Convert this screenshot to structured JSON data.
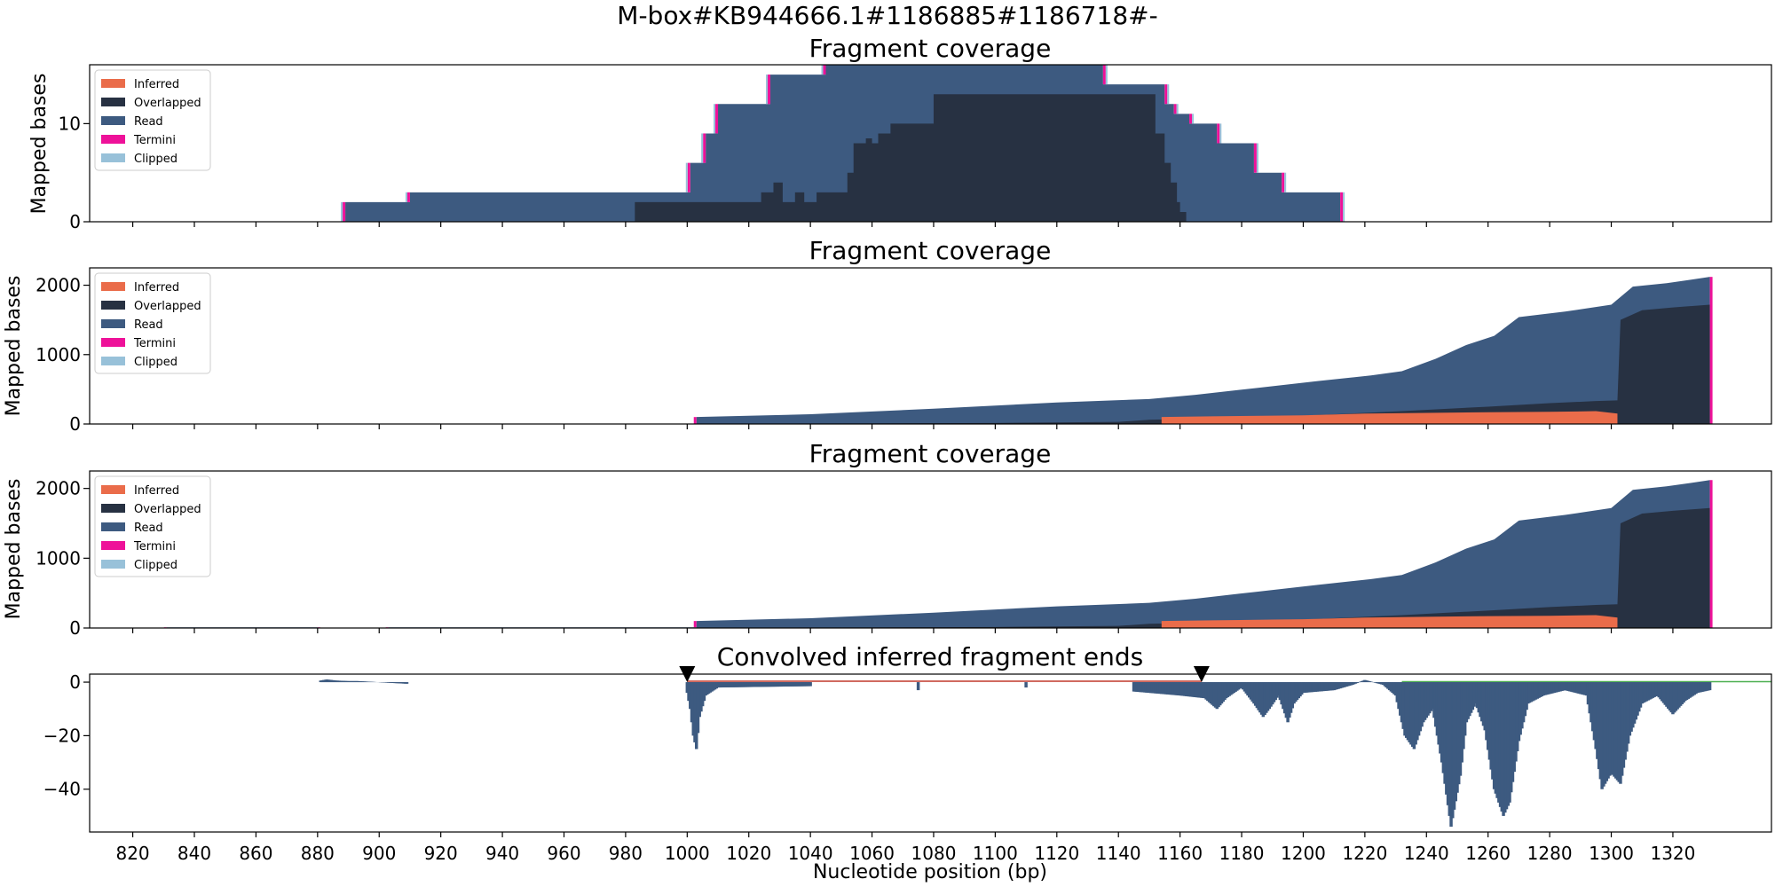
{
  "figure": {
    "suptitle": "M-box#KB944666.1#1186885#1186718#-"
  },
  "colors": {
    "inferred": "#EA6C4A",
    "overlapped": "#273142",
    "read": "#3D5A80",
    "termini": "#EE1199",
    "clipped": "#98C1D9",
    "convolved": "#3D5A80",
    "bracket": "#C0392B",
    "guide": "#4CAF50"
  },
  "chart_data": [
    {
      "type": "area",
      "title": "Fragment coverage",
      "ylabel": "Mapped bases",
      "xlim": [
        806,
        1352
      ],
      "ylim": [
        0,
        16
      ],
      "yticks": [
        0,
        10
      ],
      "legend": [
        "Inferred",
        "Overlapped",
        "Read",
        "Termini",
        "Clipped"
      ],
      "legend_position": "upper-left",
      "series": [
        {
          "name": "Read",
          "points": [
            [
              889,
              0
            ],
            [
              889,
              2
            ],
            [
              910,
              2
            ],
            [
              910,
              3
            ],
            [
              1001,
              3
            ],
            [
              1001,
              6
            ],
            [
              1006,
              6
            ],
            [
              1006,
              9
            ],
            [
              1010,
              9
            ],
            [
              1010,
              12
            ],
            [
              1027,
              12
            ],
            [
              1027,
              15
            ],
            [
              1045,
              15
            ],
            [
              1045,
              16
            ],
            [
              1055,
              16
            ],
            [
              1055,
              18
            ],
            [
              1120,
              18
            ],
            [
              1120,
              16
            ],
            [
              1135,
              16
            ],
            [
              1135,
              14
            ],
            [
              1155,
              14
            ],
            [
              1155,
              12
            ],
            [
              1158,
              12
            ],
            [
              1158,
              11
            ],
            [
              1163,
              11
            ],
            [
              1163,
              10
            ],
            [
              1172,
              10
            ],
            [
              1172,
              8
            ],
            [
              1184,
              8
            ],
            [
              1184,
              5
            ],
            [
              1193,
              5
            ],
            [
              1193,
              3
            ],
            [
              1212,
              3
            ],
            [
              1212,
              0
            ]
          ]
        },
        {
          "name": "Overlapped",
          "points": [
            [
              983,
              0
            ],
            [
              983,
              2
            ],
            [
              1024,
              2
            ],
            [
              1024,
              3
            ],
            [
              1028,
              3
            ],
            [
              1028,
              4
            ],
            [
              1031,
              4
            ],
            [
              1031,
              2
            ],
            [
              1035,
              2
            ],
            [
              1035,
              3
            ],
            [
              1038,
              3
            ],
            [
              1038,
              2
            ],
            [
              1042,
              2
            ],
            [
              1042,
              3
            ],
            [
              1052,
              3
            ],
            [
              1052,
              5
            ],
            [
              1054,
              5
            ],
            [
              1054,
              8
            ],
            [
              1058,
              8
            ],
            [
              1058,
              8.5
            ],
            [
              1060,
              8.5
            ],
            [
              1060,
              8
            ],
            [
              1062,
              8
            ],
            [
              1062,
              9
            ],
            [
              1066,
              9
            ],
            [
              1066,
              10
            ],
            [
              1080,
              10
            ],
            [
              1080,
              13
            ],
            [
              1152,
              13
            ],
            [
              1152,
              9
            ],
            [
              1155,
              9
            ],
            [
              1155,
              6
            ],
            [
              1157,
              6
            ],
            [
              1157,
              4
            ],
            [
              1159,
              4
            ],
            [
              1159,
              2
            ],
            [
              1160,
              2
            ],
            [
              1160,
              1
            ],
            [
              1162,
              1
            ],
            [
              1162,
              0
            ]
          ]
        }
      ]
    },
    {
      "type": "area",
      "title": "Fragment coverage",
      "ylabel": "Mapped bases",
      "xlim": [
        806,
        1352
      ],
      "ylim": [
        0,
        2250
      ],
      "yticks": [
        0,
        1000,
        2000
      ],
      "legend": [
        "Inferred",
        "Overlapped",
        "Read",
        "Termini",
        "Clipped"
      ],
      "legend_position": "upper-left",
      "series": [
        {
          "name": "Read",
          "points": [
            [
              1003,
              0
            ],
            [
              1003,
              100
            ],
            [
              1040,
              140
            ],
            [
              1080,
              220
            ],
            [
              1120,
              310
            ],
            [
              1150,
              360
            ],
            [
              1165,
              420
            ],
            [
              1185,
              520
            ],
            [
              1205,
              620
            ],
            [
              1222,
              700
            ],
            [
              1232,
              760
            ],
            [
              1243,
              940
            ],
            [
              1253,
              1140
            ],
            [
              1262,
              1270
            ],
            [
              1270,
              1540
            ],
            [
              1285,
              1620
            ],
            [
              1294,
              1680
            ],
            [
              1300,
              1720
            ],
            [
              1307,
              1980
            ],
            [
              1318,
              2030
            ],
            [
              1326,
              2080
            ],
            [
              1332,
              2120
            ],
            [
              1332,
              0
            ]
          ]
        },
        {
          "name": "Overlapped",
          "points": [
            [
              1003,
              0
            ],
            [
              1003,
              3
            ],
            [
              1060,
              8
            ],
            [
              1100,
              15
            ],
            [
              1140,
              30
            ],
            [
              1150,
              60
            ],
            [
              1170,
              80
            ],
            [
              1200,
              120
            ],
            [
              1230,
              180
            ],
            [
              1260,
              250
            ],
            [
              1280,
              300
            ],
            [
              1295,
              330
            ],
            [
              1302,
              340
            ],
            [
              1303,
              1500
            ],
            [
              1310,
              1640
            ],
            [
              1320,
              1680
            ],
            [
              1332,
              1720
            ],
            [
              1332,
              0
            ]
          ]
        },
        {
          "name": "Inferred",
          "points": [
            [
              1154,
              0
            ],
            [
              1154,
              100
            ],
            [
              1170,
              110
            ],
            [
              1190,
              120
            ],
            [
              1200,
              125
            ],
            [
              1220,
              150
            ],
            [
              1240,
              160
            ],
            [
              1260,
              170
            ],
            [
              1280,
              175
            ],
            [
              1295,
              185
            ],
            [
              1302,
              150
            ],
            [
              1302,
              0
            ]
          ]
        }
      ]
    },
    {
      "type": "area",
      "title": "Fragment coverage",
      "ylabel": "Mapped bases",
      "xlim": [
        806,
        1352
      ],
      "ylim": [
        0,
        2250
      ],
      "yticks": [
        0,
        1000,
        2000
      ],
      "legend": [
        "Inferred",
        "Overlapped",
        "Read",
        "Termini",
        "Clipped"
      ],
      "legend_position": "upper-left",
      "series": [
        {
          "name": "Read",
          "points": [
            [
              831,
              0
            ],
            [
              831,
              10
            ],
            [
              880,
              10
            ],
            [
              880,
              0
            ],
            [
              903,
              0
            ],
            [
              903,
              10
            ],
            [
              1003,
              10
            ],
            [
              1003,
              100
            ],
            [
              1040,
              140
            ],
            [
              1080,
              220
            ],
            [
              1120,
              310
            ],
            [
              1150,
              360
            ],
            [
              1165,
              420
            ],
            [
              1185,
              520
            ],
            [
              1205,
              620
            ],
            [
              1222,
              700
            ],
            [
              1232,
              760
            ],
            [
              1243,
              940
            ],
            [
              1253,
              1140
            ],
            [
              1262,
              1270
            ],
            [
              1270,
              1540
            ],
            [
              1285,
              1620
            ],
            [
              1294,
              1680
            ],
            [
              1300,
              1720
            ],
            [
              1307,
              1980
            ],
            [
              1318,
              2030
            ],
            [
              1326,
              2080
            ],
            [
              1332,
              2120
            ],
            [
              1332,
              0
            ]
          ]
        },
        {
          "name": "Overlapped",
          "points": [
            [
              1003,
              0
            ],
            [
              1003,
              3
            ],
            [
              1060,
              8
            ],
            [
              1100,
              15
            ],
            [
              1140,
              30
            ],
            [
              1150,
              60
            ],
            [
              1170,
              80
            ],
            [
              1200,
              120
            ],
            [
              1230,
              180
            ],
            [
              1260,
              250
            ],
            [
              1280,
              300
            ],
            [
              1295,
              330
            ],
            [
              1302,
              340
            ],
            [
              1303,
              1500
            ],
            [
              1310,
              1640
            ],
            [
              1320,
              1680
            ],
            [
              1332,
              1720
            ],
            [
              1332,
              0
            ]
          ]
        },
        {
          "name": "Inferred",
          "points": [
            [
              1154,
              0
            ],
            [
              1154,
              100
            ],
            [
              1170,
              110
            ],
            [
              1190,
              120
            ],
            [
              1200,
              125
            ],
            [
              1220,
              150
            ],
            [
              1240,
              160
            ],
            [
              1260,
              170
            ],
            [
              1280,
              175
            ],
            [
              1295,
              185
            ],
            [
              1302,
              150
            ],
            [
              1302,
              0
            ]
          ]
        }
      ]
    },
    {
      "type": "bar",
      "title": "Convolved inferred fragment ends",
      "xlabel": "Nucleotide position (bp)",
      "xlim": [
        806,
        1352
      ],
      "ylim": [
        -56,
        3
      ],
      "yticks": [
        0,
        -20,
        -40
      ],
      "xticks": [
        820,
        840,
        860,
        880,
        900,
        920,
        940,
        960,
        980,
        1000,
        1020,
        1040,
        1060,
        1080,
        1100,
        1120,
        1140,
        1160,
        1180,
        1200,
        1220,
        1240,
        1260,
        1280,
        1300,
        1320
      ],
      "markers": [
        1000,
        1167
      ],
      "bracket": [
        1000,
        1167
      ],
      "guide_line": [
        1232,
        1352
      ],
      "series": [
        {
          "name": "Convolved",
          "points": [
            [
              881,
              0.6
            ],
            [
              883,
              1
            ],
            [
              886,
              0.6
            ],
            [
              890,
              0.4
            ],
            [
              893,
              0.4
            ],
            [
              909,
              -0.6
            ],
            [
              1000,
              -4
            ],
            [
              1001,
              -10
            ],
            [
              1002,
              -20
            ],
            [
              1003,
              -25
            ],
            [
              1004,
              -13
            ],
            [
              1006,
              -5
            ],
            [
              1010,
              -2
            ],
            [
              1040,
              -1.5
            ],
            [
              1075,
              -3
            ],
            [
              1110,
              -2
            ],
            [
              1145,
              -3.5
            ],
            [
              1160,
              -5
            ],
            [
              1168,
              -6
            ],
            [
              1172,
              -10
            ],
            [
              1175,
              -6
            ],
            [
              1180,
              -2
            ],
            [
              1184,
              -8
            ],
            [
              1187,
              -13
            ],
            [
              1189,
              -10
            ],
            [
              1192,
              -5
            ],
            [
              1195,
              -15
            ],
            [
              1197,
              -8
            ],
            [
              1200,
              -4
            ],
            [
              1210,
              -3
            ],
            [
              1216,
              -1
            ],
            [
              1220,
              0.8
            ],
            [
              1226,
              -1
            ],
            [
              1230,
              -5
            ],
            [
              1233,
              -20
            ],
            [
              1236,
              -25
            ],
            [
              1239,
              -15
            ],
            [
              1242,
              -10
            ],
            [
              1245,
              -30
            ],
            [
              1248,
              -54
            ],
            [
              1251,
              -35
            ],
            [
              1253,
              -15
            ],
            [
              1256,
              -8
            ],
            [
              1259,
              -18
            ],
            [
              1262,
              -40
            ],
            [
              1265,
              -50
            ],
            [
              1267,
              -45
            ],
            [
              1270,
              -22
            ],
            [
              1273,
              -8
            ],
            [
              1278,
              -5
            ],
            [
              1285,
              -3
            ],
            [
              1292,
              -5
            ],
            [
              1295,
              -25
            ],
            [
              1297,
              -40
            ],
            [
              1300,
              -34
            ],
            [
              1303,
              -38
            ],
            [
              1306,
              -20
            ],
            [
              1310,
              -8
            ],
            [
              1315,
              -5
            ],
            [
              1320,
              -12
            ],
            [
              1324,
              -7
            ],
            [
              1328,
              -4
            ],
            [
              1332,
              -3
            ]
          ]
        }
      ]
    }
  ]
}
